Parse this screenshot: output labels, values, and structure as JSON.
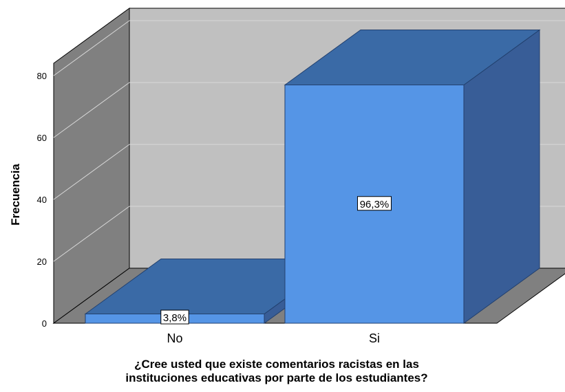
{
  "chart_data": {
    "type": "bar",
    "style": "3d",
    "categories": [
      "No",
      "Si"
    ],
    "values": [
      3,
      77
    ],
    "data_labels": [
      "3,8%",
      "96,3%"
    ],
    "ylabel": "Frecuencia",
    "xlabel_lines": [
      "¿Cree usted que existe comentarios racistas en las",
      "instituciones educativas por parte de los estudiantes?"
    ],
    "yticks": [
      0,
      20,
      40,
      60,
      80
    ],
    "ylim": [
      0,
      85
    ],
    "grid": true,
    "legend": "none",
    "colors": {
      "bar_front": "#5595e6",
      "bar_top": "#3a6aa6",
      "bar_side": "#385d97",
      "back_wall": "#c0c0c0",
      "left_wall": "#808080",
      "floor": "#808080",
      "gridline": "#d8d8d8"
    }
  }
}
